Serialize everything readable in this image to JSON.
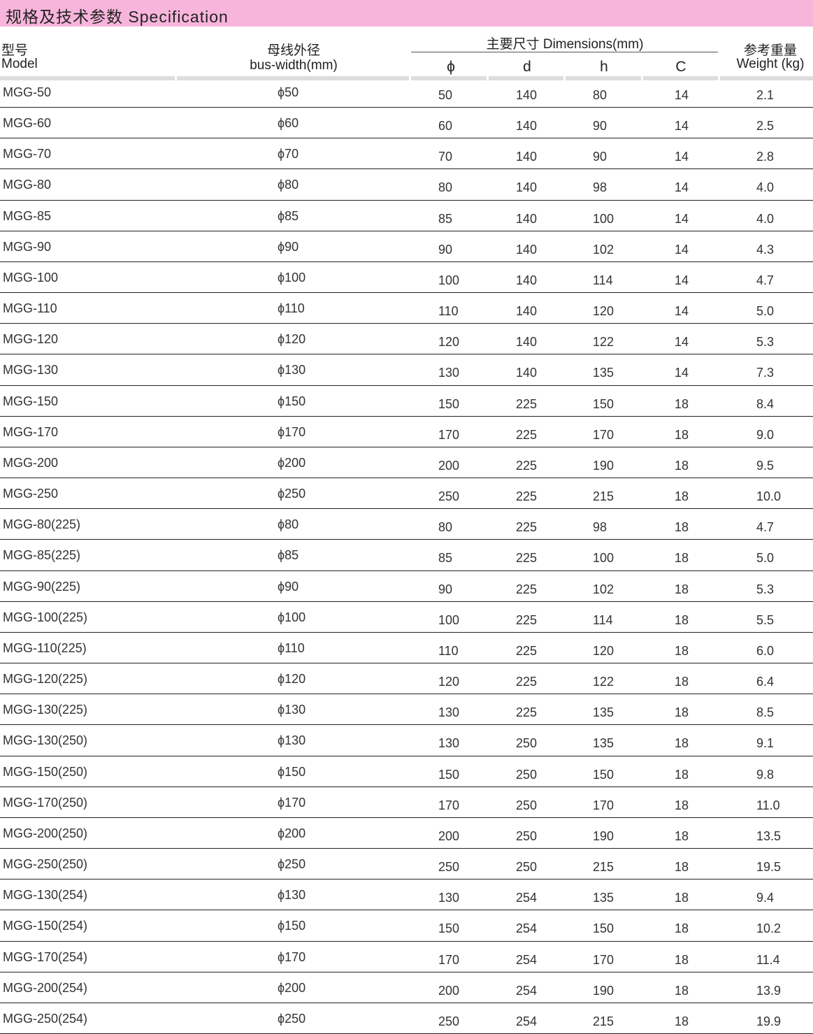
{
  "title": "规格及技术参数  Specification",
  "header": {
    "model_cn": "型号",
    "model_en": "Model",
    "bus_cn": "母线外径",
    "bus_en": "bus-width(mm)",
    "dims": "主要尺寸  Dimensions(mm)",
    "phi": "ϕ",
    "d": "d",
    "h": "h",
    "c": "C",
    "weight_cn": "参考重量",
    "weight_en": "Weight (kg)"
  },
  "rows": [
    [
      "MGG-50",
      "ϕ50",
      "50",
      "140",
      "80",
      "14",
      "2.1"
    ],
    [
      "MGG-60",
      "ϕ60",
      "60",
      "140",
      "90",
      "14",
      "2.5"
    ],
    [
      "MGG-70",
      "ϕ70",
      "70",
      "140",
      "90",
      "14",
      "2.8"
    ],
    [
      "MGG-80",
      "ϕ80",
      "80",
      "140",
      "98",
      "14",
      "4.0"
    ],
    [
      "MGG-85",
      "ϕ85",
      "85",
      "140",
      "100",
      "14",
      "4.0"
    ],
    [
      "MGG-90",
      "ϕ90",
      "90",
      "140",
      "102",
      "14",
      "4.3"
    ],
    [
      "MGG-100",
      "ϕ100",
      "100",
      "140",
      "114",
      "14",
      "4.7"
    ],
    [
      "MGG-110",
      "ϕ110",
      "110",
      "140",
      "120",
      "14",
      "5.0"
    ],
    [
      "MGG-120",
      "ϕ120",
      "120",
      "140",
      "122",
      "14",
      "5.3"
    ],
    [
      "MGG-130",
      "ϕ130",
      "130",
      "140",
      "135",
      "14",
      "7.3"
    ],
    [
      "MGG-150",
      "ϕ150",
      "150",
      "225",
      "150",
      "18",
      "8.4"
    ],
    [
      "MGG-170",
      "ϕ170",
      "170",
      "225",
      "170",
      "18",
      "9.0"
    ],
    [
      "MGG-200",
      "ϕ200",
      "200",
      "225",
      "190",
      "18",
      "9.5"
    ],
    [
      "MGG-250",
      "ϕ250",
      "250",
      "225",
      "215",
      "18",
      "10.0"
    ],
    [
      "MGG-80(225)",
      "ϕ80",
      "80",
      "225",
      "98",
      "18",
      "4.7"
    ],
    [
      "MGG-85(225)",
      "ϕ85",
      "85",
      "225",
      "100",
      "18",
      "5.0"
    ],
    [
      "MGG-90(225)",
      "ϕ90",
      "90",
      "225",
      "102",
      "18",
      "5.3"
    ],
    [
      "MGG-100(225)",
      "ϕ100",
      "100",
      "225",
      "114",
      "18",
      "5.5"
    ],
    [
      "MGG-110(225)",
      "ϕ110",
      "110",
      "225",
      "120",
      "18",
      "6.0"
    ],
    [
      "MGG-120(225)",
      "ϕ120",
      "120",
      "225",
      "122",
      "18",
      "6.4"
    ],
    [
      "MGG-130(225)",
      "ϕ130",
      "130",
      "225",
      "135",
      "18",
      "8.5"
    ],
    [
      "MGG-130(250)",
      "ϕ130",
      "130",
      "250",
      "135",
      "18",
      "9.1"
    ],
    [
      "MGG-150(250)",
      "ϕ150",
      "150",
      "250",
      "150",
      "18",
      "9.8"
    ],
    [
      "MGG-170(250)",
      "ϕ170",
      "170",
      "250",
      "170",
      "18",
      "11.0"
    ],
    [
      "MGG-200(250)",
      "ϕ200",
      "200",
      "250",
      "190",
      "18",
      "13.5"
    ],
    [
      "MGG-250(250)",
      "ϕ250",
      "250",
      "250",
      "215",
      "18",
      "19.5"
    ],
    [
      "MGG-130(254)",
      "ϕ130",
      "130",
      "254",
      "135",
      "18",
      "9.4"
    ],
    [
      "MGG-150(254)",
      "ϕ150",
      "150",
      "254",
      "150",
      "18",
      "10.2"
    ],
    [
      "MGG-170(254)",
      "ϕ170",
      "170",
      "254",
      "170",
      "18",
      "11.4"
    ],
    [
      "MGG-200(254)",
      "ϕ200",
      "200",
      "254",
      "190",
      "18",
      "13.9"
    ],
    [
      "MGG-250(254)",
      "ϕ250",
      "250",
      "254",
      "215",
      "18",
      "19.9"
    ]
  ]
}
